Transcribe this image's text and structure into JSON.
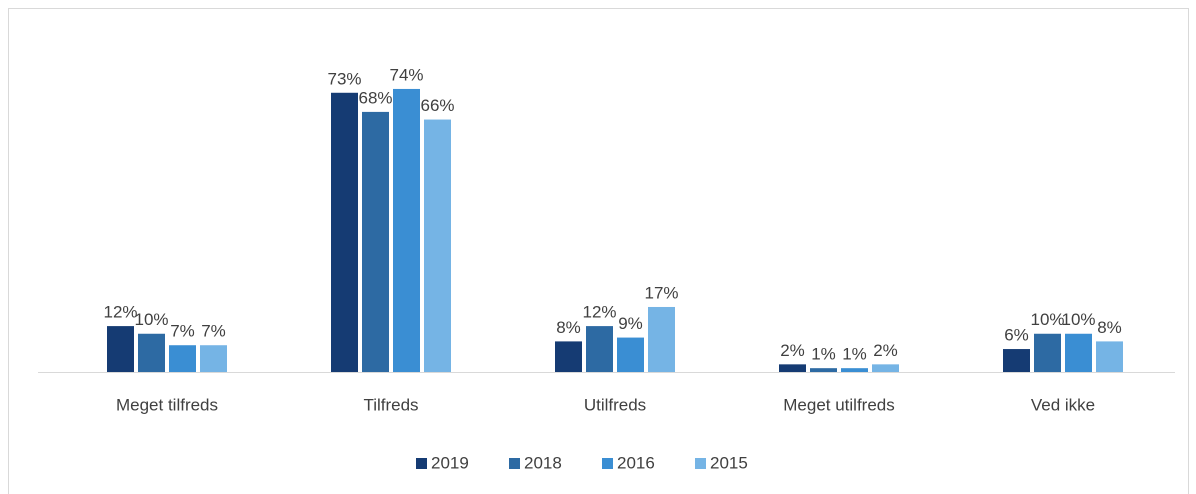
{
  "chart_data": {
    "type": "bar",
    "categories": [
      "Meget tilfreds",
      "Tilfreds",
      "Utilfreds",
      "Meget utilfreds",
      "Ved ikke"
    ],
    "series": [
      {
        "name": "2019",
        "color": "#153b73",
        "values": [
          12,
          73,
          8,
          2,
          6
        ],
        "value_labels": [
          "12%",
          "73%",
          "8%",
          "2%",
          "6%"
        ]
      },
      {
        "name": "2018",
        "color": "#2d6aa3",
        "values": [
          10,
          68,
          12,
          1,
          10
        ],
        "value_labels": [
          "10%",
          "68%",
          "12%",
          "1%",
          "10%"
        ]
      },
      {
        "name": "2016",
        "color": "#3a8ed3",
        "values": [
          7,
          74,
          9,
          1,
          10
        ],
        "value_labels": [
          "7%",
          "74%",
          "9%",
          "1%",
          "10%"
        ]
      },
      {
        "name": "2015",
        "color": "#75b4e5",
        "values": [
          7,
          66,
          17,
          2,
          8
        ],
        "value_labels": [
          "7%",
          "66%",
          "17%",
          "2%",
          "8%"
        ]
      }
    ],
    "ylim": [
      0,
      80
    ],
    "legend": "bottom"
  }
}
